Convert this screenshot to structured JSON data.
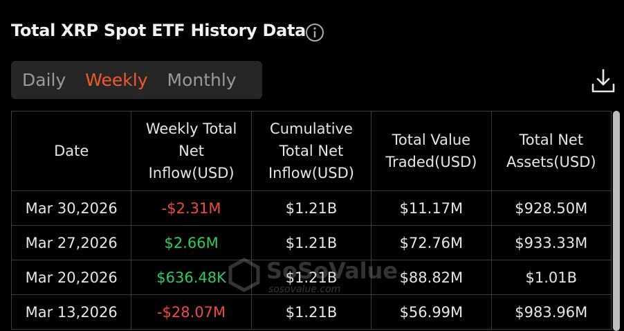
{
  "header": {
    "title": "Total XRP Spot ETF History Data"
  },
  "tabs": [
    "Daily",
    "Weekly",
    "Monthly"
  ],
  "watermark": {
    "brand": "SoSoValue",
    "url": "sosovalue.com"
  },
  "table": {
    "columns": [
      "Date",
      "Weekly Total Net Inflow(USD)",
      "Cumulative Total Net Inflow(USD)",
      "Total Value Traded(USD)",
      "Total Net Assets(USD)"
    ],
    "rows": [
      [
        "Mar 30,2026",
        "-$2.31M",
        "$1.21B",
        "$11.17M",
        "$928.50M"
      ],
      [
        "Mar 27,2026",
        "$2.66M",
        "$1.21B",
        "$72.76M",
        "$933.33M"
      ],
      [
        "Mar 20,2026",
        "$636.48K",
        "$1.21B",
        "$88.82M",
        "$1.01B"
      ],
      [
        "Mar 13,2026",
        "-$28.07M",
        "$1.21B",
        "$56.99M",
        "$983.96M"
      ]
    ]
  }
}
